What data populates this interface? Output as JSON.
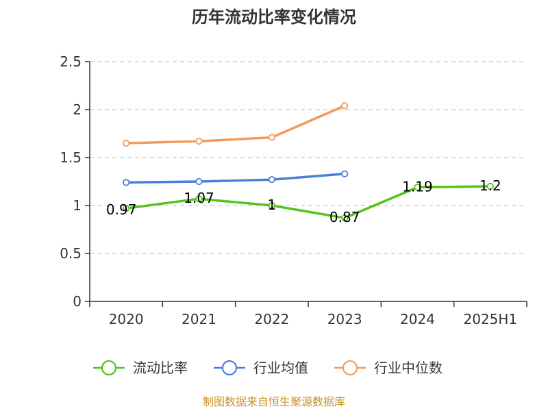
{
  "chart_data": {
    "type": "line",
    "title": "历年流动比率变化情况",
    "categories": [
      "2020",
      "2021",
      "2022",
      "2023",
      "2024",
      "2025H1"
    ],
    "ylim": [
      0,
      2.5
    ],
    "yticks": [
      0,
      0.5,
      1,
      1.5,
      2,
      2.5
    ],
    "ytick_labels": [
      "0",
      "0.5",
      "1",
      "1.5",
      "2",
      "2.5"
    ],
    "grid": true,
    "legend_position": "bottom",
    "series": [
      {
        "name": "流动比率",
        "color": "#52c41a",
        "values": [
          0.97,
          1.07,
          1,
          0.87,
          1.19,
          1.2
        ],
        "labels": [
          "0.97",
          "1.07",
          "1",
          "0.87",
          "1.19",
          "1.2"
        ]
      },
      {
        "name": "行业均值",
        "color": "#4a7fdc",
        "values": [
          1.24,
          1.25,
          1.27,
          1.33,
          null,
          null
        ]
      },
      {
        "name": "行业中位数",
        "color": "#f59a5b",
        "values": [
          1.65,
          1.67,
          1.71,
          2.04,
          null,
          null
        ]
      }
    ],
    "source": "制图数据来自恒生聚源数据库"
  }
}
